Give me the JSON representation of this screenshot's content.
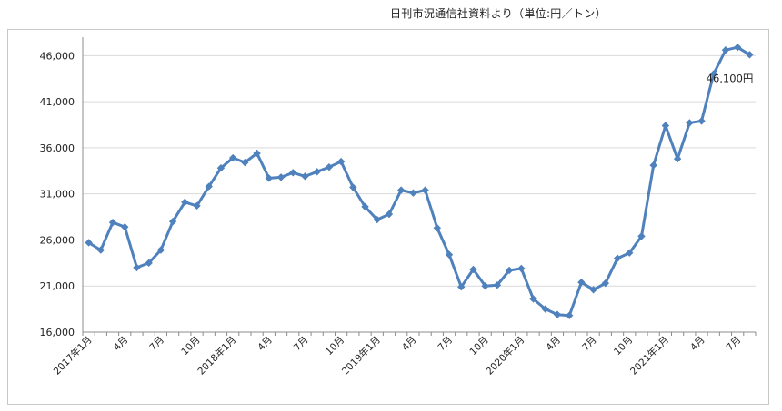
{
  "source_note": "日刊市況通信社資料より（単位:円／トン）",
  "chart_data": {
    "type": "line",
    "title": "",
    "xlabel": "",
    "ylabel": "",
    "ylim": [
      16000,
      48000
    ],
    "yticks": [
      16000,
      21000,
      26000,
      31000,
      36000,
      41000,
      46000
    ],
    "ytick_labels": [
      "16,000",
      "21,000",
      "26,000",
      "31,000",
      "36,000",
      "41,000",
      "46,000"
    ],
    "grid": true,
    "legend": "none",
    "line_color": "#4f81bd",
    "x_tick_labels": [
      {
        "index": 0,
        "label": "2017年1月"
      },
      {
        "index": 3,
        "label": "4月"
      },
      {
        "index": 6,
        "label": "7月"
      },
      {
        "index": 9,
        "label": "10月"
      },
      {
        "index": 12,
        "label": "2018年1月"
      },
      {
        "index": 15,
        "label": "4月"
      },
      {
        "index": 18,
        "label": "7月"
      },
      {
        "index": 21,
        "label": "10月"
      },
      {
        "index": 24,
        "label": "2019年1月"
      },
      {
        "index": 27,
        "label": "4月"
      },
      {
        "index": 30,
        "label": "7月"
      },
      {
        "index": 33,
        "label": "10月"
      },
      {
        "index": 36,
        "label": "2020年1月"
      },
      {
        "index": 39,
        "label": "4月"
      },
      {
        "index": 42,
        "label": "7月"
      },
      {
        "index": 45,
        "label": "10月"
      },
      {
        "index": 48,
        "label": "2021年1月"
      },
      {
        "index": 51,
        "label": "4月"
      },
      {
        "index": 54,
        "label": "7月"
      }
    ],
    "x": [
      "2017-01",
      "2017-02",
      "2017-03",
      "2017-04",
      "2017-05",
      "2017-06",
      "2017-07",
      "2017-08",
      "2017-09",
      "2017-10",
      "2017-11",
      "2017-12",
      "2018-01",
      "2018-02",
      "2018-03",
      "2018-04",
      "2018-05",
      "2018-06",
      "2018-07",
      "2018-08",
      "2018-09",
      "2018-10",
      "2018-11",
      "2018-12",
      "2019-01",
      "2019-02",
      "2019-03",
      "2019-04",
      "2019-05",
      "2019-06",
      "2019-07",
      "2019-08",
      "2019-09",
      "2019-10",
      "2019-11",
      "2019-12",
      "2020-01",
      "2020-02",
      "2020-03",
      "2020-04",
      "2020-05",
      "2020-06",
      "2020-07",
      "2020-08",
      "2020-09",
      "2020-10",
      "2020-11",
      "2020-12",
      "2021-01",
      "2021-02",
      "2021-03",
      "2021-04",
      "2021-05",
      "2021-06",
      "2021-07",
      "2021-08"
    ],
    "series": [
      {
        "values": [
          25700,
          24900,
          27900,
          27400,
          23000,
          23500,
          24900,
          28000,
          30100,
          29700,
          31800,
          33800,
          34900,
          34400,
          35400,
          32700,
          32800,
          33300,
          32900,
          33400,
          33900,
          34500,
          31700,
          29600,
          28200,
          28800,
          31400,
          31100,
          31400,
          27300,
          24400,
          20900,
          22800,
          21000,
          21100,
          22700,
          22900,
          19600,
          18500,
          17900,
          17800,
          21400,
          20600,
          21300,
          24000,
          24600,
          26400,
          34100,
          38400,
          34800,
          38700,
          38900,
          44000,
          46600,
          46900,
          46100
        ]
      }
    ],
    "annotations": [
      {
        "index": 55,
        "text": "46,100円"
      }
    ]
  }
}
